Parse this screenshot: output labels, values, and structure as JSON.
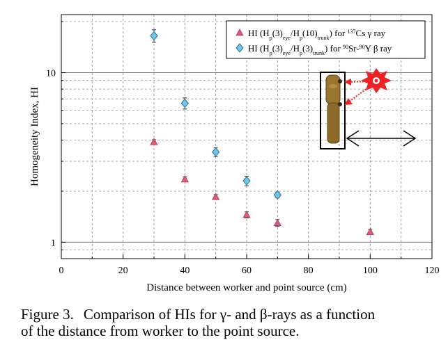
{
  "chart_data": {
    "type": "scatter",
    "xlabel": "Distance between worker and point source (cm)",
    "ylabel": "Homogeneity Index, HI",
    "xlim": [
      0,
      120
    ],
    "ylim": [
      0.8,
      22
    ],
    "yscale": "log",
    "x_ticks": [
      0,
      20,
      40,
      60,
      80,
      100,
      120
    ],
    "y_ticks": [
      1,
      10
    ],
    "grid": "dashed",
    "legend_position": "top-right",
    "series": [
      {
        "name_parts": [
          "HI (H",
          "p",
          "(3)",
          "eye",
          "/H",
          "p",
          "(10)",
          "trunk",
          ") for ",
          "137",
          "Cs γ ray"
        ],
        "marker": "triangle",
        "color": "#e05a7a",
        "points": [
          {
            "x": 30,
            "y": 3.9,
            "err": 0.12
          },
          {
            "x": 40,
            "y": 2.35,
            "err": 0.08
          },
          {
            "x": 50,
            "y": 1.85,
            "err": 0.06
          },
          {
            "x": 60,
            "y": 1.45,
            "err": 0.06
          },
          {
            "x": 70,
            "y": 1.3,
            "err": 0.06
          },
          {
            "x": 100,
            "y": 1.15,
            "err": 0.04
          }
        ]
      },
      {
        "name_parts": [
          "HI (H",
          "p",
          "(3)",
          "eye",
          "/H",
          "p",
          "(3)",
          "trunk",
          ") for ",
          "90",
          "Sr-",
          "90",
          "Y β ray"
        ],
        "marker": "diamond",
        "color": "#6ec7e8",
        "points": [
          {
            "x": 30,
            "y": 16.5,
            "err": 1.4
          },
          {
            "x": 40,
            "y": 6.6,
            "err": 0.5
          },
          {
            "x": 50,
            "y": 3.4,
            "err": 0.2
          },
          {
            "x": 60,
            "y": 2.3,
            "err": 0.15
          },
          {
            "x": 70,
            "y": 1.9,
            "err": 0.07
          }
        ]
      }
    ]
  },
  "caption": {
    "number": "Figure 3.",
    "text_line1": "Comparison of HIs for γ- and β-rays as a function",
    "text_line2": "of the distance from worker to the point source."
  }
}
